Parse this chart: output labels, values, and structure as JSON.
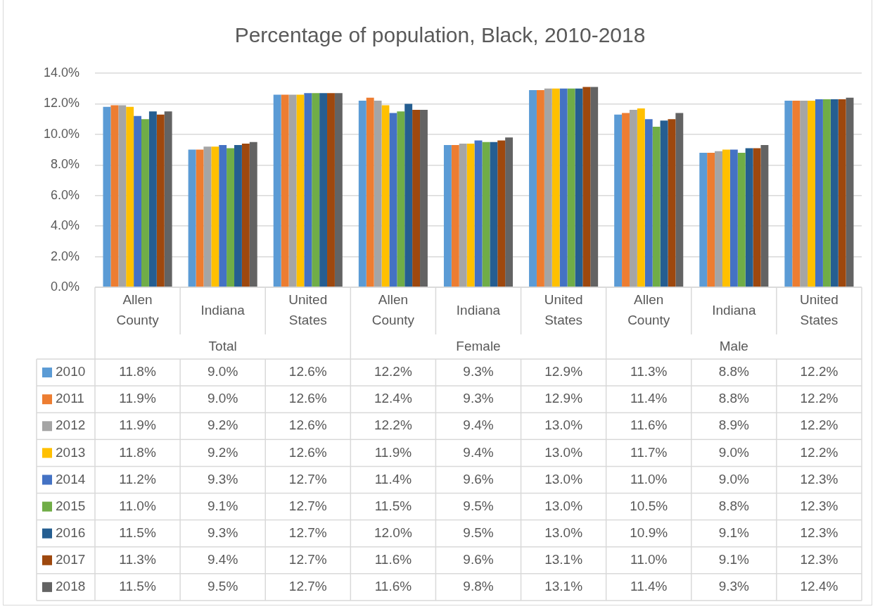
{
  "chart_data": {
    "type": "bar",
    "title": "Percentage of population, Black, 2010-2018",
    "categories": [
      "Allen County",
      "Indiana",
      "United States",
      "Allen County",
      "Indiana",
      "United States",
      "Allen County",
      "Indiana",
      "United States"
    ],
    "annotations": [
      "Total",
      "Female",
      "Male"
    ],
    "series": [
      {
        "name": "2010",
        "color": "#5b9bd5",
        "values": [
          11.8,
          9.0,
          12.6,
          12.2,
          9.3,
          12.9,
          11.3,
          8.8,
          12.2
        ],
        "value_labels": [
          "11.8%",
          "9.0%",
          "12.6%",
          "12.2%",
          "9.3%",
          "12.9%",
          "11.3%",
          "8.8%",
          "12.2%"
        ]
      },
      {
        "name": "2011",
        "color": "#ed7d31",
        "values": [
          11.9,
          9.0,
          12.6,
          12.4,
          9.3,
          12.9,
          11.4,
          8.8,
          12.2
        ],
        "value_labels": [
          "11.9%",
          "9.0%",
          "12.6%",
          "12.4%",
          "9.3%",
          "12.9%",
          "11.4%",
          "8.8%",
          "12.2%"
        ]
      },
      {
        "name": "2012",
        "color": "#a5a5a5",
        "values": [
          11.9,
          9.2,
          12.6,
          12.2,
          9.4,
          13.0,
          11.6,
          8.9,
          12.2
        ],
        "value_labels": [
          "11.9%",
          "9.2%",
          "12.6%",
          "12.2%",
          "9.4%",
          "13.0%",
          "11.6%",
          "8.9%",
          "12.2%"
        ]
      },
      {
        "name": "2013",
        "color": "#ffc000",
        "values": [
          11.8,
          9.2,
          12.6,
          11.9,
          9.4,
          13.0,
          11.7,
          9.0,
          12.2
        ],
        "value_labels": [
          "11.8%",
          "9.2%",
          "12.6%",
          "11.9%",
          "9.4%",
          "13.0%",
          "11.7%",
          "9.0%",
          "12.2%"
        ]
      },
      {
        "name": "2014",
        "color": "#4472c4",
        "values": [
          11.2,
          9.3,
          12.7,
          11.4,
          9.6,
          13.0,
          11.0,
          9.0,
          12.3
        ],
        "value_labels": [
          "11.2%",
          "9.3%",
          "12.7%",
          "11.4%",
          "9.6%",
          "13.0%",
          "11.0%",
          "9.0%",
          "12.3%"
        ]
      },
      {
        "name": "2015",
        "color": "#70ad47",
        "values": [
          11.0,
          9.1,
          12.7,
          11.5,
          9.5,
          13.0,
          10.5,
          8.8,
          12.3
        ],
        "value_labels": [
          "11.0%",
          "9.1%",
          "12.7%",
          "11.5%",
          "9.5%",
          "13.0%",
          "10.5%",
          "8.8%",
          "12.3%"
        ]
      },
      {
        "name": "2016",
        "color": "#255e91",
        "values": [
          11.5,
          9.3,
          12.7,
          12.0,
          9.5,
          13.0,
          10.9,
          9.1,
          12.3
        ],
        "value_labels": [
          "11.5%",
          "9.3%",
          "12.7%",
          "12.0%",
          "9.5%",
          "13.0%",
          "10.9%",
          "9.1%",
          "12.3%"
        ]
      },
      {
        "name": "2017",
        "color": "#9e480e",
        "values": [
          11.3,
          9.4,
          12.7,
          11.6,
          9.6,
          13.1,
          11.0,
          9.1,
          12.3
        ],
        "value_labels": [
          "11.3%",
          "9.4%",
          "12.7%",
          "11.6%",
          "9.6%",
          "13.1%",
          "11.0%",
          "9.1%",
          "12.3%"
        ]
      },
      {
        "name": "2018",
        "color": "#636363",
        "values": [
          11.5,
          9.5,
          12.7,
          11.6,
          9.8,
          13.1,
          11.4,
          9.3,
          12.4
        ],
        "value_labels": [
          "11.5%",
          "9.5%",
          "12.7%",
          "11.6%",
          "9.8%",
          "13.1%",
          "11.4%",
          "9.3%",
          "12.4%"
        ]
      }
    ],
    "ylim": [
      0,
      14
    ],
    "yticks": [
      {
        "value": 0,
        "label": "0.0%"
      },
      {
        "value": 2,
        "label": "2.0%"
      },
      {
        "value": 4,
        "label": "4.0%"
      },
      {
        "value": 6,
        "label": "6.0%"
      },
      {
        "value": 8,
        "label": "8.0%"
      },
      {
        "value": 10,
        "label": "10.0%"
      },
      {
        "value": 12,
        "label": "12.0%"
      },
      {
        "value": 14,
        "label": "14.0%"
      }
    ],
    "grid": "y",
    "legend": "bottom"
  }
}
